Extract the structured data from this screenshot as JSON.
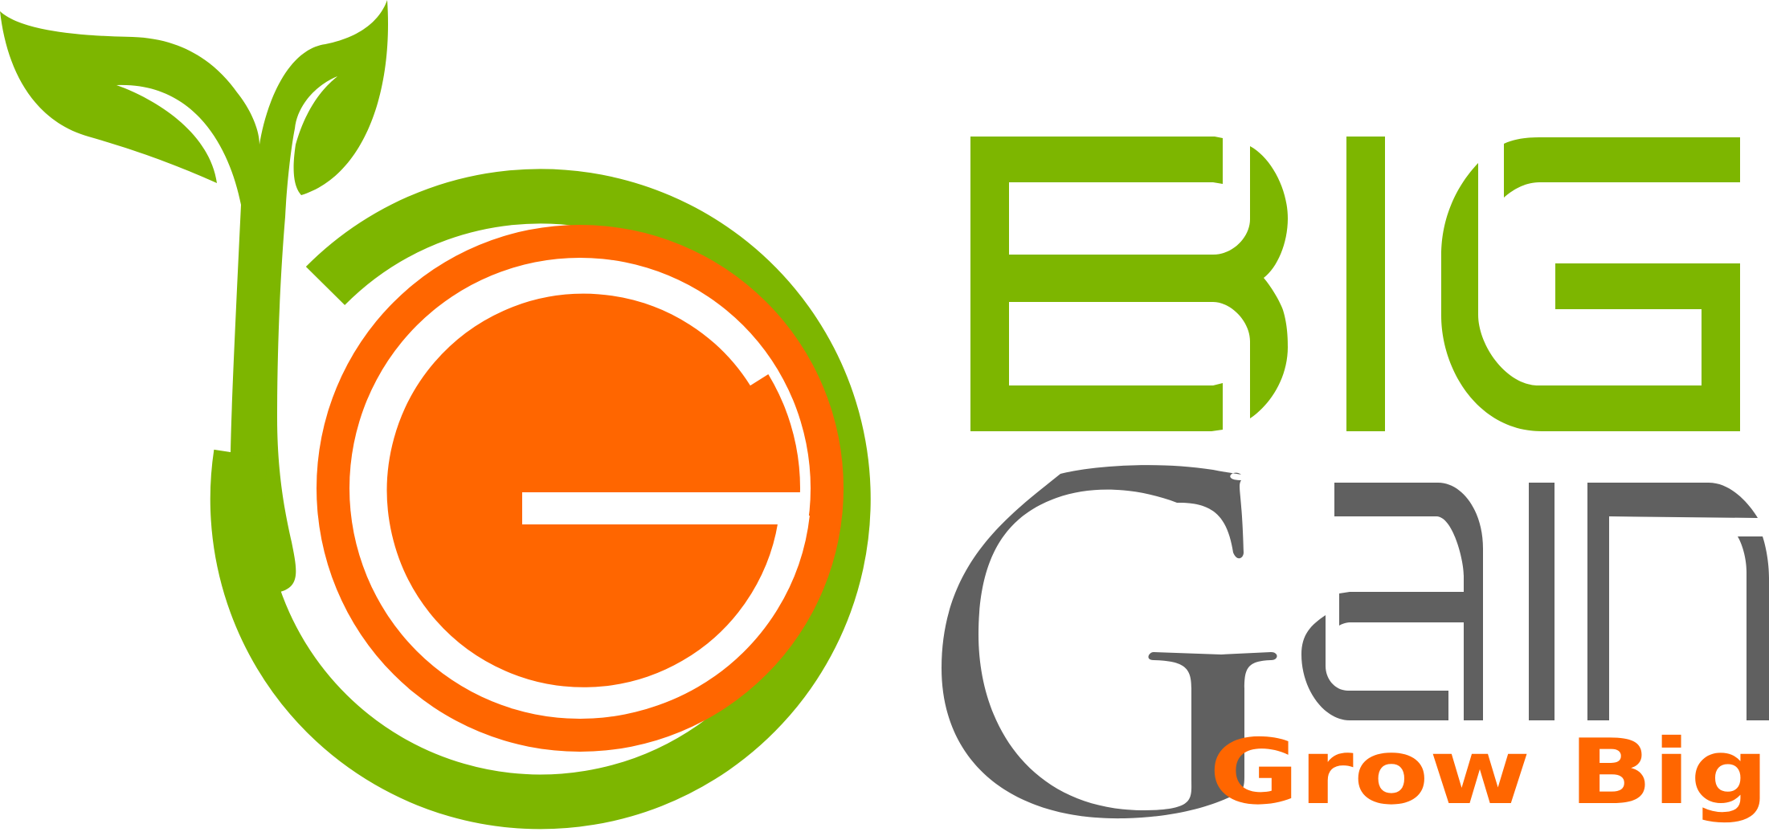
{
  "logo": {
    "wordmark_top": "BIG",
    "wordmark_bottom": "Gain",
    "tagline": "Grow Big",
    "emblem_letter": "G"
  },
  "colors": {
    "green": "#7db600",
    "orange": "#ff6600",
    "gray": "#606060",
    "white": "#ffffff"
  }
}
